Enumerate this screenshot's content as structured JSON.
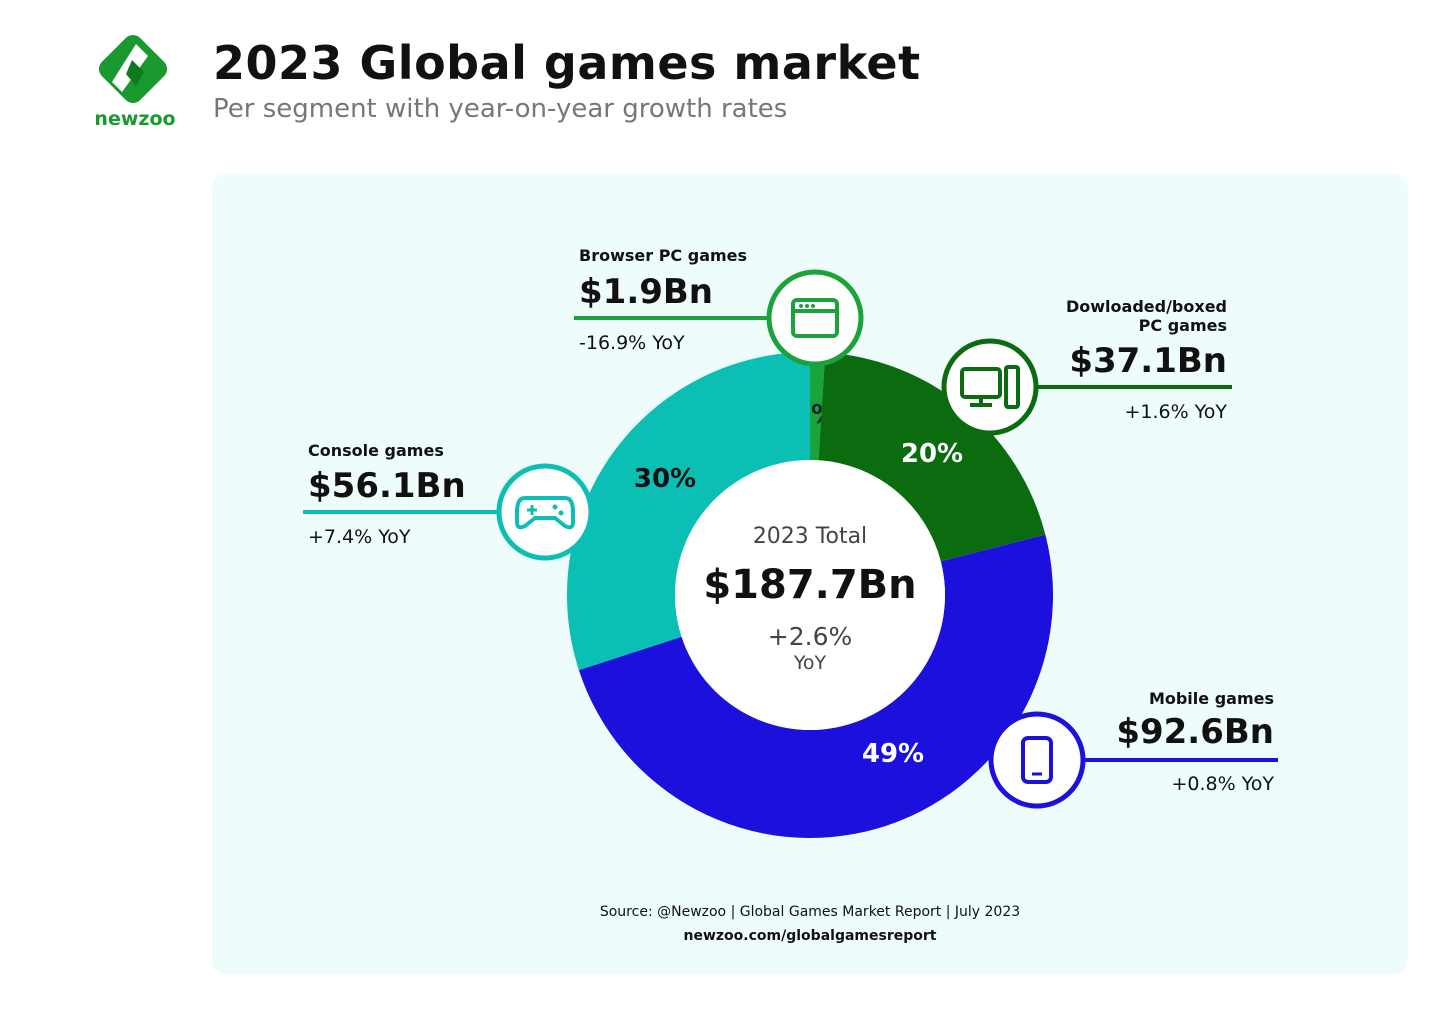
{
  "brand": {
    "name": "newzoo",
    "color": "#1a9a2e"
  },
  "title": "2023 Global games market",
  "subtitle": "Per segment with year-on-year growth rates",
  "chart_data": {
    "type": "pie",
    "donut": true,
    "center": {
      "label": "2023 Total",
      "value": "$187.7Bn",
      "growth": "+2.6%",
      "growth_unit": "YoY"
    },
    "segments": [
      {
        "name": "Browser PC games",
        "value_label": "$1.9Bn",
        "value": 1.9,
        "share": 1,
        "share_label": "1%",
        "yoy": "-16.9% YoY",
        "color": "#1aa33a",
        "icon": "browser-window-icon"
      },
      {
        "name": "Dowloaded/boxed",
        "name2": "PC games",
        "value_label": "$37.1Bn",
        "value": 37.1,
        "share": 20,
        "share_label": "20%",
        "yoy": "+1.6% YoY",
        "color": "#0b6b0f",
        "icon": "desktop-pc-icon"
      },
      {
        "name": "Mobile games",
        "value_label": "$92.6Bn",
        "value": 92.6,
        "share": 49,
        "share_label": "49%",
        "yoy": "+0.8% YoY",
        "color": "#1c10dc",
        "icon": "smartphone-icon"
      },
      {
        "name": "Console games",
        "value_label": "$56.1Bn",
        "value": 56.1,
        "share": 30,
        "share_label": "30%",
        "yoy": "+7.4% YoY",
        "color": "#0bbfb5",
        "icon": "gamepad-icon"
      }
    ]
  },
  "source": {
    "line1": "Source: @Newzoo | Global Games Market Report | July 2023",
    "line2": "newzoo.com/globalgamesreport"
  }
}
